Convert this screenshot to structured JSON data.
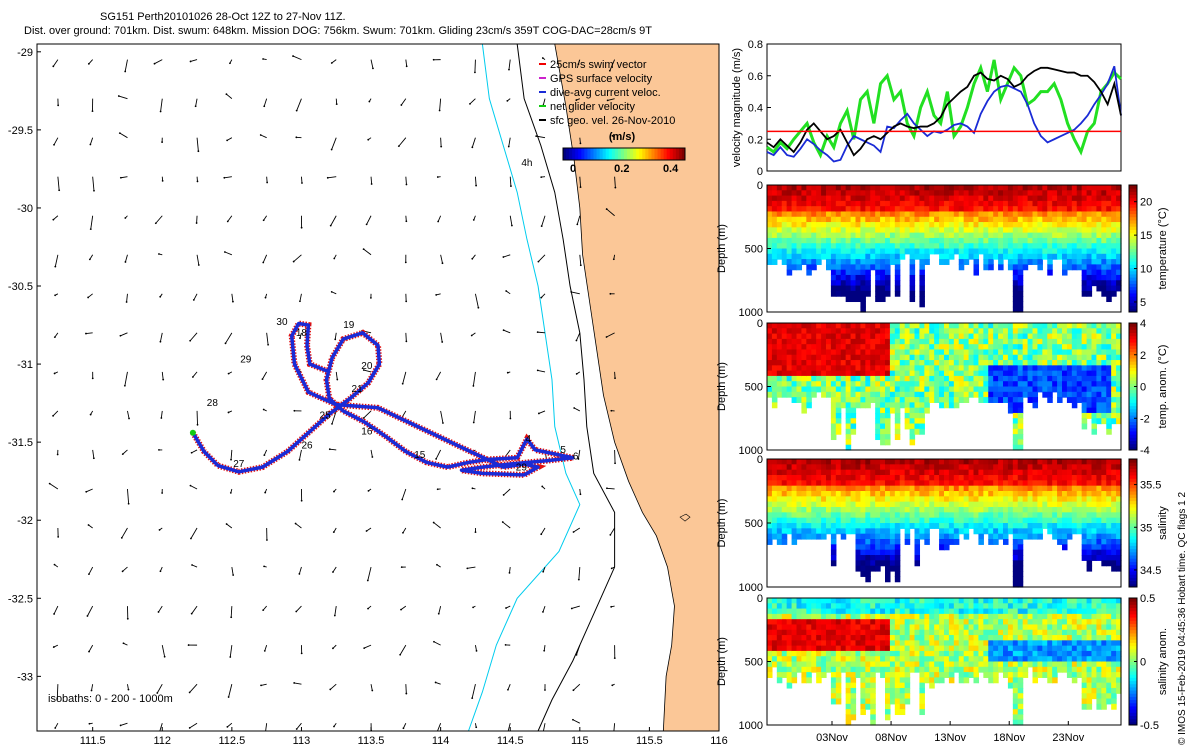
{
  "title": {
    "line1": "SG151 Perth20101026 28-Oct 12Z to 27-Nov 11Z.",
    "line2": "Dist. over ground: 701km. Dist. swum: 648km. Mission DOG: 756km. Swum: 701km. Gliding 23cm/s 359T COG-DAC=28cm/s 9T"
  },
  "side_note": "© IMOS 15-Feb-2019 04:45:36 Hobart time. QC flags 1  2",
  "colors": {
    "land": "#fbc797",
    "coast": "#000000",
    "isobath_200": "#00ccee",
    "isobath_1000": "#000000",
    "track_red": "#e01010",
    "track_blue": "#1a2bd6",
    "swim_line": "#f00000",
    "current_line": "#1a2bd6",
    "net_line": "#000000",
    "threshold_line": "#ff0000"
  },
  "chart_data": [
    {
      "type": "map",
      "panel": "track-map",
      "xlim": [
        111.1,
        116.0
      ],
      "ylim": [
        -33.35,
        -28.95
      ],
      "xticks": [
        "111.5",
        "112",
        "112.5",
        "113",
        "113.5",
        "114",
        "114.5",
        "115",
        "115.5",
        "116"
      ],
      "yticks": [
        "-29",
        "-29.5",
        "-30",
        "-30.5",
        "-31",
        "-31.5",
        "-32",
        "-32.5",
        "-33"
      ],
      "xtick_values": [
        111.5,
        112,
        112.5,
        113,
        113.5,
        114,
        114.5,
        115,
        115.5,
        116
      ],
      "ytick_values": [
        -29,
        -29.5,
        -30,
        -30.5,
        -31,
        -31.5,
        -32,
        -32.5,
        -33
      ],
      "legend": {
        "items": [
          "25cm/s swim vector",
          "GPS surface velocity",
          "dive-avg current veloc.",
          "net glider velocity",
          "sfc geo. vel. 26-Nov-2010"
        ],
        "colorbar_title": "(m/s)",
        "colorbar_ticks": [
          "0",
          "0.2",
          "0.4"
        ],
        "colorbar_values": [
          0,
          0.2,
          0.4
        ],
        "colorbar_range": [
          0,
          0.5
        ]
      },
      "label_4h": "4h",
      "isobaths_text": "isobaths: 0 - 200 - 1000m",
      "track": [
        [
          112.22,
          -31.44
        ],
        [
          112.3,
          -31.56
        ],
        [
          112.4,
          -31.65
        ],
        [
          112.55,
          -31.69
        ],
        [
          112.72,
          -31.66
        ],
        [
          112.9,
          -31.56
        ],
        [
          113.05,
          -31.44
        ],
        [
          113.2,
          -31.32
        ],
        [
          113.35,
          -31.22
        ],
        [
          113.48,
          -31.12
        ],
        [
          113.56,
          -31.0
        ],
        [
          113.55,
          -30.88
        ],
        [
          113.44,
          -30.8
        ],
        [
          113.3,
          -30.84
        ],
        [
          113.22,
          -30.96
        ],
        [
          113.18,
          -31.1
        ],
        [
          113.2,
          -31.22
        ],
        [
          113.3,
          -31.3
        ],
        [
          113.45,
          -31.37
        ],
        [
          113.6,
          -31.46
        ],
        [
          113.75,
          -31.56
        ],
        [
          113.9,
          -31.63
        ],
        [
          114.05,
          -31.66
        ],
        [
          114.2,
          -31.63
        ],
        [
          114.35,
          -31.61
        ],
        [
          114.55,
          -31.6
        ],
        [
          114.62,
          -31.48
        ],
        [
          114.68,
          -31.55
        ],
        [
          114.95,
          -31.6
        ],
        [
          114.75,
          -31.62
        ],
        [
          114.5,
          -31.64
        ],
        [
          114.3,
          -31.66
        ],
        [
          114.15,
          -31.68
        ],
        [
          114.3,
          -31.7
        ],
        [
          114.6,
          -31.71
        ],
        [
          114.7,
          -31.66
        ],
        [
          114.6,
          -31.64
        ],
        [
          114.45,
          -31.66
        ],
        [
          113.55,
          -31.28
        ],
        [
          113.25,
          -31.26
        ],
        [
          113.05,
          -31.18
        ],
        [
          112.95,
          -31.0
        ],
        [
          112.93,
          -30.82
        ],
        [
          112.98,
          -30.74
        ],
        [
          113.05,
          -30.75
        ],
        [
          113.04,
          -30.88
        ],
        [
          113.06,
          -31.0
        ],
        [
          113.2,
          -31.05
        ]
      ],
      "day_labels": [
        {
          "text": "30",
          "lon": 112.86,
          "lat": -30.75
        },
        {
          "text": "18",
          "lon": 113.0,
          "lat": -30.82
        },
        {
          "text": "19",
          "lon": 113.34,
          "lat": -30.77
        },
        {
          "text": "29",
          "lon": 112.6,
          "lat": -30.99
        },
        {
          "text": "20",
          "lon": 113.47,
          "lat": -31.03
        },
        {
          "text": "21",
          "lon": 113.4,
          "lat": -31.18
        },
        {
          "text": "28",
          "lon": 112.36,
          "lat": -31.27
        },
        {
          "text": "25",
          "lon": 113.17,
          "lat": -31.35
        },
        {
          "text": "16",
          "lon": 113.47,
          "lat": -31.45
        },
        {
          "text": "26",
          "lon": 113.04,
          "lat": -31.54
        },
        {
          "text": "15",
          "lon": 113.85,
          "lat": -31.6
        },
        {
          "text": "4",
          "lon": 114.63,
          "lat": -31.5
        },
        {
          "text": "5",
          "lon": 114.88,
          "lat": -31.57
        },
        {
          "text": "6",
          "lon": 114.97,
          "lat": -31.61
        },
        {
          "text": "27",
          "lon": 112.55,
          "lat": -31.66
        },
        {
          "text": "29",
          "lon": 114.58,
          "lat": -31.68
        }
      ]
    },
    {
      "type": "line",
      "panel": "velocity",
      "ylabel": "velocity magnitude (m/s)",
      "ylim": [
        0,
        0.8
      ],
      "yticks": [
        "0",
        "0.2",
        "0.4",
        "0.6",
        "0.8"
      ],
      "ytick_values": [
        0,
        0.2,
        0.4,
        0.6,
        0.8
      ],
      "x_start_day": 28.5,
      "x_end_day": 58.46,
      "threshold": 0.25,
      "series": [
        {
          "values": [
            0.15,
            0.12,
            0.18,
            0.14,
            0.2,
            0.25,
            0.3,
            0.18,
            0.1,
            0.22,
            0.15,
            0.3,
            0.38,
            0.2,
            0.45,
            0.5,
            0.3,
            0.55,
            0.6,
            0.45,
            0.5,
            0.3,
            0.22,
            0.4,
            0.5,
            0.35,
            0.3,
            0.5,
            0.22,
            0.28,
            0.4,
            0.55,
            0.65,
            0.5,
            0.7,
            0.45,
            0.55,
            0.65,
            0.6,
            0.42,
            0.45,
            0.5,
            0.5,
            0.55,
            0.45,
            0.3,
            0.2,
            0.12,
            0.25,
            0.3,
            0.5,
            0.55,
            0.62,
            0.58
          ]
        },
        {
          "values": [
            0.12,
            0.1,
            0.15,
            0.1,
            0.09,
            0.14,
            0.2,
            0.17,
            0.13,
            0.1,
            0.06,
            0.07,
            0.16,
            0.22,
            0.2,
            0.18,
            0.16,
            0.12,
            0.28,
            0.27,
            0.32,
            0.36,
            0.3,
            0.26,
            0.22,
            0.25,
            0.24,
            0.26,
            0.29,
            0.3,
            0.28,
            0.24,
            0.36,
            0.44,
            0.5,
            0.53,
            0.54,
            0.52,
            0.5,
            0.42,
            0.3,
            0.22,
            0.18,
            0.2,
            0.22,
            0.24,
            0.26,
            0.3,
            0.35,
            0.42,
            0.48,
            0.55,
            0.66,
            0.35
          ]
        },
        {
          "values": [
            0.18,
            0.15,
            0.2,
            0.16,
            0.12,
            0.18,
            0.26,
            0.3,
            0.25,
            0.2,
            0.22,
            0.26,
            0.18,
            0.1,
            0.14,
            0.2,
            0.22,
            0.2,
            0.24,
            0.28,
            0.3,
            0.28,
            0.27,
            0.28,
            0.28,
            0.3,
            0.34,
            0.42,
            0.46,
            0.5,
            0.53,
            0.6,
            0.62,
            0.58,
            0.57,
            0.6,
            0.58,
            0.53,
            0.55,
            0.6,
            0.63,
            0.65,
            0.65,
            0.64,
            0.63,
            0.62,
            0.62,
            0.6,
            0.6,
            0.56,
            0.5,
            0.42,
            0.55,
            0.35
          ]
        }
      ]
    },
    {
      "type": "heatmap",
      "panel": "temperature",
      "ylabel": "Depth (m)",
      "ylim": [
        1000,
        0
      ],
      "yticks": [
        "0",
        "500",
        "1000"
      ],
      "colorbar_label": "temperature (°C)",
      "colorbar_ticks": [
        "5",
        "10",
        "15",
        "20"
      ],
      "colorbar_range": [
        3.5,
        22.5
      ]
    },
    {
      "type": "heatmap",
      "panel": "temperature-anomaly",
      "ylabel": "Depth (m)",
      "ylim": [
        1000,
        0
      ],
      "yticks": [
        "0",
        "500",
        "1000"
      ],
      "colorbar_label": "temp. anom. (°C)",
      "colorbar_ticks": [
        "-4",
        "-2",
        "0",
        "2",
        "4"
      ],
      "colorbar_range": [
        -4,
        4
      ]
    },
    {
      "type": "heatmap",
      "panel": "salinity",
      "ylabel": "Depth (m)",
      "ylim": [
        1000,
        0
      ],
      "yticks": [
        "0",
        "500",
        "1000"
      ],
      "colorbar_label": "salinity",
      "colorbar_ticks": [
        "34.5",
        "35",
        "35.5"
      ],
      "colorbar_range": [
        34.3,
        35.8
      ]
    },
    {
      "type": "heatmap",
      "panel": "salinity-anomaly",
      "ylabel": "Depth (m)",
      "ylim": [
        1000,
        0
      ],
      "yticks": [
        "0",
        "500",
        "1000"
      ],
      "colorbar_label": "salinity anom.",
      "colorbar_ticks": [
        "-0.5",
        "0",
        "0.5"
      ],
      "colorbar_range": [
        -0.5,
        0.5
      ],
      "xticks": [
        "03Nov",
        "08Nov",
        "13Nov",
        "18Nov",
        "23Nov"
      ],
      "xtick_days": [
        34,
        39,
        44,
        49,
        54
      ]
    }
  ]
}
